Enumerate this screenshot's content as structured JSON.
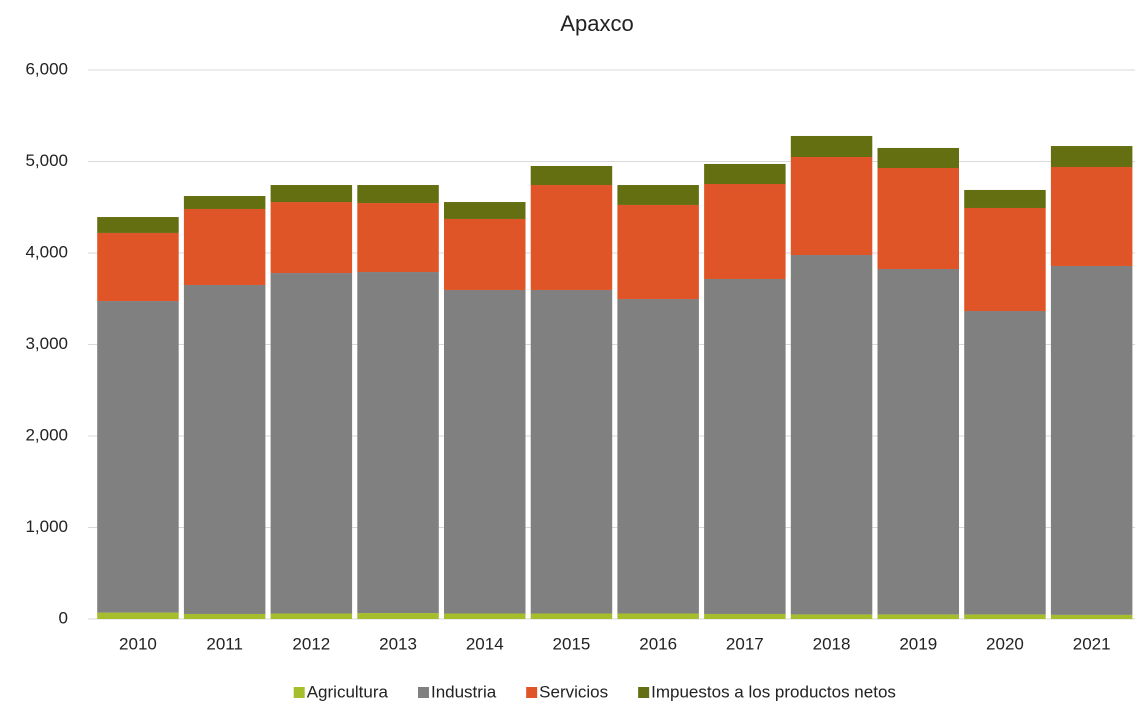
{
  "chart_data": {
    "type": "stacked_bar",
    "title": "Apaxco",
    "categories": [
      "2010",
      "2011",
      "2012",
      "2013",
      "2014",
      "2015",
      "2016",
      "2017",
      "2018",
      "2019",
      "2020",
      "2021"
    ],
    "series": [
      {
        "name": "Agricultura",
        "color": "#a5bf2c",
        "values": [
          70,
          55,
          60,
          65,
          60,
          60,
          60,
          55,
          50,
          50,
          50,
          45
        ]
      },
      {
        "name": "Industria",
        "color": "#808080",
        "values": [
          3405,
          3595,
          3721,
          3727,
          3536,
          3536,
          3437,
          3661,
          3928,
          3775,
          3316,
          3813
        ]
      },
      {
        "name": "Servicios",
        "color": "#e05528",
        "values": [
          744,
          831,
          776,
          754,
          776,
          1147,
          1028,
          1038,
          1071,
          1104,
          1126,
          1082
        ]
      },
      {
        "name": "Impuestos a los productos netos",
        "color": "#646f12",
        "values": [
          174,
          142,
          186,
          197,
          185,
          208,
          218,
          219,
          230,
          219,
          197,
          229
        ]
      }
    ],
    "ylim": [
      0,
      6000
    ],
    "yticks": [
      0,
      {
        "value": 1000,
        "label": "1,000"
      },
      {
        "value": 2000,
        "label": "2,000"
      },
      {
        "value": 3000,
        "label": "3,000"
      },
      {
        "value": 4000,
        "label": "4,000"
      },
      {
        "value": 5000,
        "label": "5,000"
      },
      {
        "value": 6000,
        "label": "6,000"
      }
    ],
    "grid": true,
    "legend": "bottom"
  }
}
